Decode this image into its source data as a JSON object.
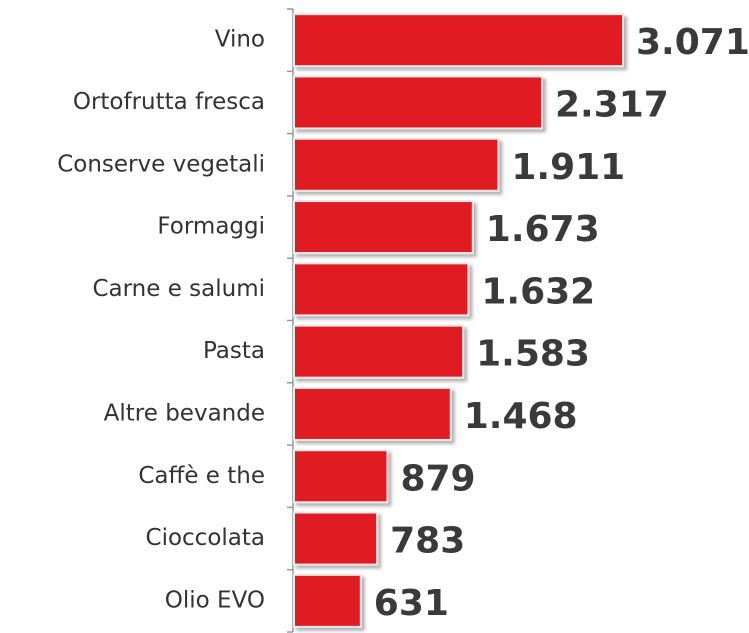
{
  "chart_data": {
    "type": "bar",
    "orientation": "horizontal",
    "categories": [
      "Vino",
      "Ortofrutta fresca",
      "Conserve vegetali",
      "Formaggi",
      "Carne e salumi",
      "Pasta",
      "Altre bevande",
      "Caffè e the",
      "Cioccolata",
      "Olio EVO"
    ],
    "values": [
      3071,
      2317,
      1911,
      1673,
      1632,
      1583,
      1468,
      879,
      783,
      631
    ],
    "value_labels": [
      "3.071",
      "2.317",
      "1.911",
      "1.673",
      "1.632",
      "1.583",
      "1.468",
      "879",
      "783",
      "631"
    ],
    "color": "#e01b24"
  }
}
